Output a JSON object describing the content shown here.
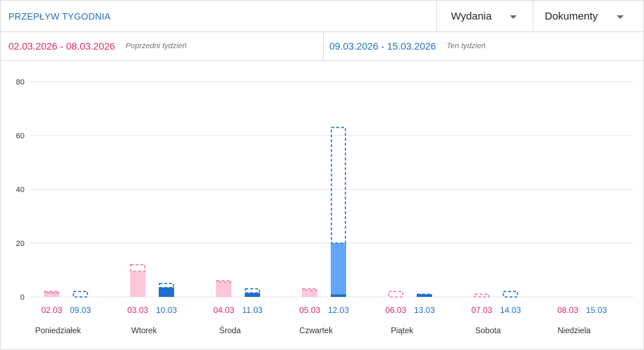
{
  "header": {
    "title": "PRZEPŁYW TYGODNIA",
    "dropdown_1": "Wydania",
    "dropdown_2": "Dokumenty"
  },
  "ranges": {
    "previous": {
      "dates": "02.03.2026 - 08.03.2026",
      "note": "Poprzedni tydzień",
      "color": "#e0266e"
    },
    "current": {
      "dates": "09.03.2026 - 15.03.2026",
      "note": "Ten tydzień",
      "color": "#1f6fc1"
    }
  },
  "chart_data": {
    "type": "bar",
    "ylim": [
      0,
      80
    ],
    "yticks": [
      0,
      20,
      40,
      60,
      80
    ],
    "grid": true,
    "categories": [
      "Poniedziałek",
      "Wtorek",
      "Środa",
      "Czwartek",
      "Piątek",
      "Sobota",
      "Niedziela"
    ],
    "series": [
      {
        "dates": [
          "02.03",
          "03.03",
          "04.03",
          "05.03",
          "06.03",
          "07.03",
          "08.03"
        ],
        "dark": [
          0,
          0,
          0,
          0,
          0,
          0,
          0
        ],
        "solid": [
          2,
          9.5,
          5.5,
          2.5,
          0,
          0,
          0
        ],
        "dashed_total": [
          2,
          12,
          6,
          3,
          2,
          1,
          0
        ],
        "color_solid": "#ffc7dc",
        "color_dashed": "#f07aa6",
        "label_color": "#e0266e"
      },
      {
        "dates": [
          "09.03",
          "10.03",
          "11.03",
          "12.03",
          "13.03",
          "14.03",
          "15.03"
        ],
        "dark": [
          0,
          3.5,
          1.5,
          1,
          1,
          0,
          0
        ],
        "solid": [
          0,
          0,
          0,
          19,
          0,
          0,
          0
        ],
        "dashed_total": [
          2,
          5,
          3,
          63,
          1,
          2,
          0
        ],
        "color_dark": "#1a6fcf",
        "color_solid": "#62a7ff",
        "color_dashed": "#1a6fcf",
        "label_color": "#1f6fc1"
      }
    ]
  }
}
